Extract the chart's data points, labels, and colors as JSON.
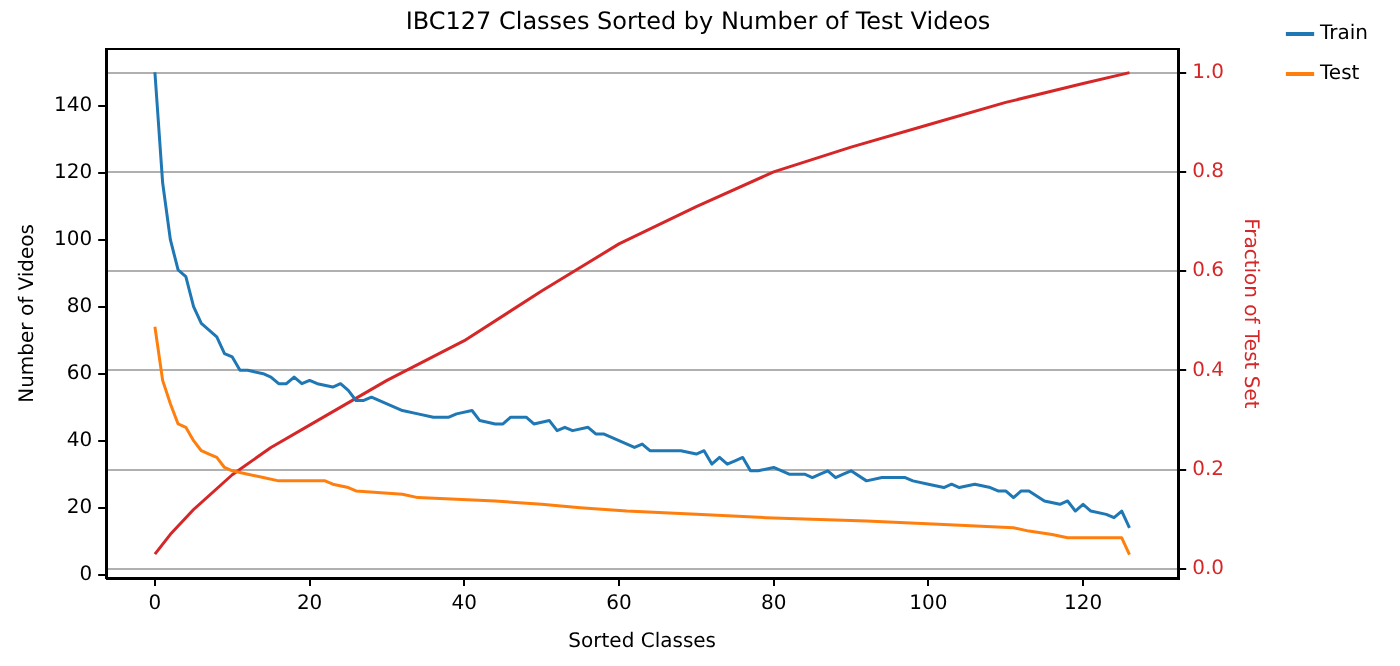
{
  "chart_data": {
    "type": "line",
    "title": "IBC127 Classes Sorted by Number of Test Videos",
    "xlabel": "Sorted Classes",
    "ylabel": "Number of Videos",
    "y2label": "Fraction of Test Set",
    "xlim": [
      -6.3,
      132.3
    ],
    "xticks": [
      0,
      20,
      40,
      60,
      80,
      100,
      120
    ],
    "ylim": [
      -1,
      157
    ],
    "yticks": [
      0,
      20,
      40,
      60,
      80,
      100,
      120,
      140
    ],
    "y2lim": [
      -0.018,
      1.048
    ],
    "y2ticks": [
      {
        "value": 0,
        "label": "0.0"
      },
      0.2,
      0.4,
      0.6,
      0.8,
      {
        "value": 1,
        "label": "1.0"
      }
    ],
    "grid": "y",
    "legend": "top right",
    "series": [
      {
        "name": "Train",
        "color": "#1f77b4",
        "x": [
          0,
          1,
          2,
          3,
          4,
          5,
          6,
          7,
          8,
          9,
          10,
          11,
          12,
          14,
          15,
          16,
          17,
          18,
          19,
          20,
          21,
          23,
          24,
          25,
          26,
          27,
          28,
          30,
          32,
          34,
          36,
          38,
          39,
          41,
          42,
          44,
          45,
          46,
          48,
          49,
          51,
          52,
          53,
          54,
          56,
          57,
          58,
          60,
          62,
          63,
          64,
          66,
          68,
          70,
          71,
          72,
          73,
          74,
          75,
          76,
          77,
          78,
          80,
          82,
          84,
          85,
          86,
          87,
          88,
          89,
          90,
          92,
          94,
          97,
          98,
          100,
          102,
          103,
          104,
          106,
          108,
          109,
          110,
          111,
          112,
          113,
          115,
          117,
          118,
          119,
          120,
          121,
          123,
          124,
          125,
          126
        ],
        "values": [
          150,
          117,
          100,
          91,
          89,
          80,
          75,
          73,
          71,
          66,
          65,
          61,
          61,
          60,
          59,
          57,
          57,
          59,
          57,
          58,
          57,
          56,
          57,
          55,
          52,
          52,
          53,
          51,
          49,
          48,
          47,
          47,
          48,
          49,
          46,
          45,
          45,
          47,
          47,
          45,
          46,
          43,
          44,
          43,
          44,
          42,
          42,
          40,
          38,
          39,
          37,
          37,
          37,
          36,
          37,
          33,
          35,
          33,
          34,
          35,
          31,
          31,
          32,
          30,
          30,
          29,
          30,
          31,
          29,
          30,
          31,
          28,
          29,
          29,
          28,
          27,
          26,
          27,
          26,
          27,
          26,
          25,
          25,
          23,
          25,
          25,
          22,
          21,
          22,
          19,
          21,
          19,
          18,
          17,
          19,
          14
        ]
      },
      {
        "name": "Test",
        "color": "#ff7f0e",
        "x": [
          0,
          1,
          2,
          3,
          4,
          5,
          6,
          7,
          8,
          9,
          10,
          12,
          14,
          16,
          22,
          23,
          25,
          26,
          32,
          34,
          44,
          50,
          55,
          61,
          70,
          79,
          92,
          102,
          111,
          113,
          116,
          118,
          125,
          126
        ],
        "values": [
          74,
          58,
          51,
          45,
          44,
          40,
          37,
          36,
          35,
          32,
          31,
          30,
          29,
          28,
          28,
          27,
          26,
          25,
          24,
          23,
          22,
          21,
          20,
          19,
          18,
          17,
          16,
          15,
          14,
          13,
          12,
          11,
          11,
          6
        ]
      },
      {
        "color": "#d62728",
        "axis": "y2",
        "x": [
          0,
          2,
          5,
          10,
          15,
          20,
          30,
          40,
          50,
          60,
          70,
          80,
          90,
          100,
          110,
          120,
          126
        ],
        "values": [
          0.03,
          0.07,
          0.12,
          0.19,
          0.245,
          0.29,
          0.38,
          0.46,
          0.56,
          0.655,
          0.73,
          0.8,
          0.85,
          0.895,
          0.94,
          0.978,
          1.0
        ]
      }
    ]
  }
}
